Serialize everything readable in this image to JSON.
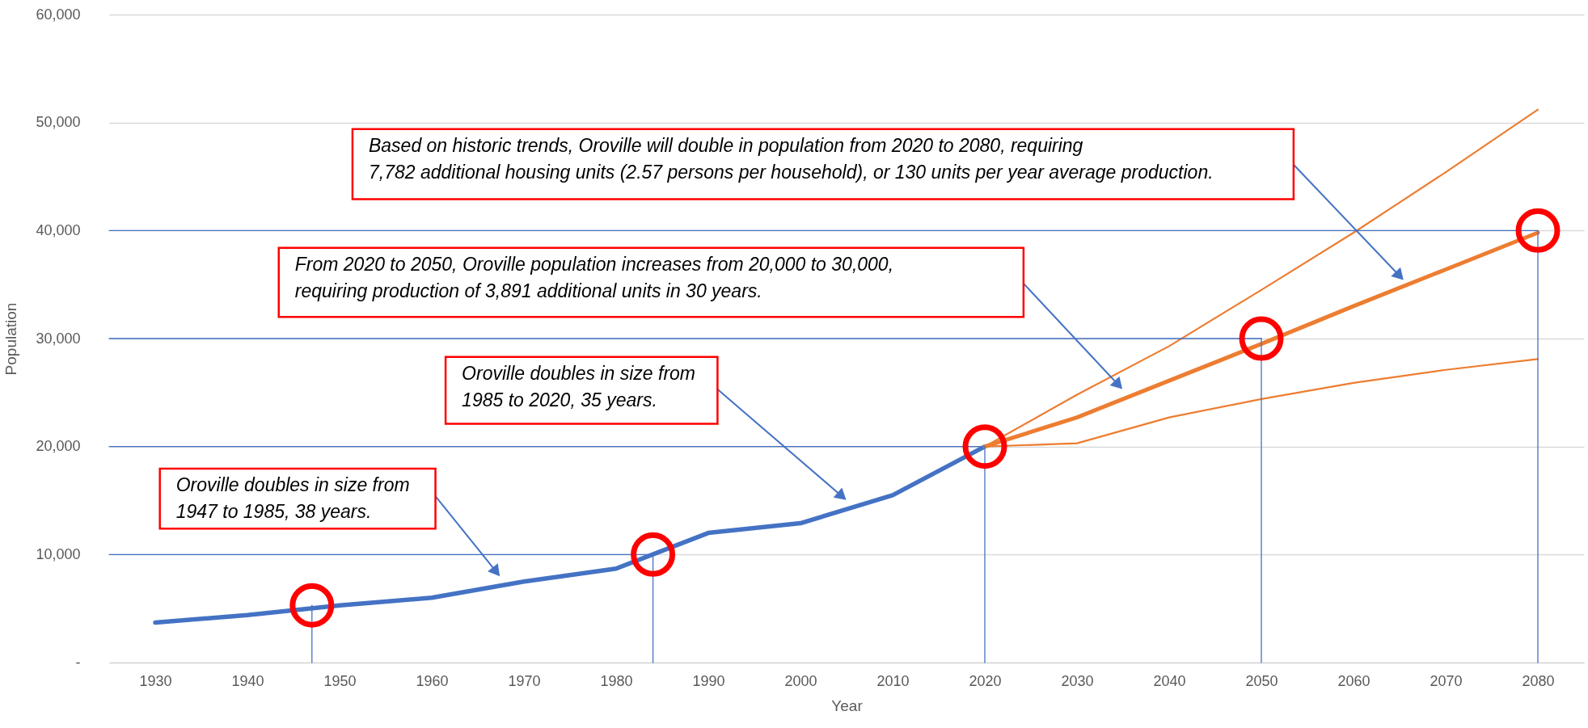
{
  "chart_data": {
    "type": "line",
    "xlabel": "Year",
    "ylabel": "Population",
    "xlim": [
      1925,
      2085
    ],
    "xticks": [
      {
        "value": 1930,
        "label": "1930"
      },
      {
        "value": 1940,
        "label": "1940"
      },
      {
        "value": 1950,
        "label": "1950"
      },
      {
        "value": 1960,
        "label": "1960"
      },
      {
        "value": 1970,
        "label": "1970"
      },
      {
        "value": 1980,
        "label": "1980"
      },
      {
        "value": 1990,
        "label": "1990"
      },
      {
        "value": 2000,
        "label": "2000"
      },
      {
        "value": 2010,
        "label": "2010"
      },
      {
        "value": 2020,
        "label": "2020"
      },
      {
        "value": 2030,
        "label": "2030"
      },
      {
        "value": 2040,
        "label": "2040"
      },
      {
        "value": 2050,
        "label": "2050"
      },
      {
        "value": 2060,
        "label": "2060"
      },
      {
        "value": 2070,
        "label": "2070"
      },
      {
        "value": 2080,
        "label": "2080"
      }
    ],
    "ylim": [
      0,
      60000
    ],
    "yticks": [
      {
        "value": 0,
        "label": "-"
      },
      {
        "value": 10000,
        "label": "10,000"
      },
      {
        "value": 20000,
        "label": "20,000"
      },
      {
        "value": 30000,
        "label": "30,000"
      },
      {
        "value": 40000,
        "label": "40,000"
      },
      {
        "value": 50000,
        "label": "50,000"
      },
      {
        "value": 60000,
        "label": "60,000"
      }
    ],
    "grid": "y",
    "line_style": "solid",
    "series": [
      {
        "color": "#4472c4",
        "x": [
          1930,
          1940,
          1950,
          1960,
          1970,
          1980,
          1990,
          2000,
          2010,
          2020
        ],
        "values": [
          3700,
          4400,
          5300,
          6000,
          7500,
          8700,
          12000,
          12900,
          15500,
          20000
        ]
      },
      {
        "color": "#ed7d31",
        "x": [
          2020,
          2030,
          2040,
          2050,
          2060,
          2070,
          2080
        ],
        "values": [
          20000,
          20300,
          22700,
          24400,
          25900,
          27100,
          28100
        ]
      },
      {
        "color": "#ed7d31",
        "x": [
          2020,
          2030,
          2040,
          2050,
          2060,
          2070,
          2080
        ],
        "values": [
          20000,
          22700,
          26100,
          29500,
          33000,
          36400,
          39800
        ]
      },
      {
        "color": "#ed7d31",
        "x": [
          2020,
          2030,
          2040,
          2050,
          2060,
          2070,
          2080
        ],
        "values": [
          20000,
          24800,
          29300,
          34500,
          39800,
          45400,
          51200
        ]
      },
      {
        "type": "scatter",
        "marker": "circle",
        "color": "#ff0000",
        "x": [
          1947,
          1984,
          2020,
          2050,
          2080
        ],
        "values": [
          5300,
          10000,
          20000,
          30000,
          40000
        ]
      },
      {
        "color": "#4472c4",
        "x": [
          1925,
          1984
        ],
        "values": [
          10000,
          10000
        ]
      },
      {
        "color": "#4472c4",
        "x": [
          1925,
          2020
        ],
        "values": [
          20000,
          20000
        ]
      },
      {
        "color": "#4472c4",
        "x": [
          1925,
          2050
        ],
        "values": [
          30000,
          30000
        ]
      },
      {
        "color": "#4472c4",
        "x": [
          1925,
          2080
        ],
        "values": [
          40000,
          40000
        ]
      },
      {
        "color": "#4472c4",
        "x": [
          1947,
          1947
        ],
        "values": [
          0,
          5300
        ]
      },
      {
        "color": "#4472c4",
        "x": [
          1984,
          1984
        ],
        "values": [
          0,
          10000
        ]
      },
      {
        "color": "#4472c4",
        "x": [
          2020,
          2020
        ],
        "values": [
          0,
          20000
        ]
      },
      {
        "color": "#4472c4",
        "x": [
          2050,
          2050
        ],
        "values": [
          0,
          30000
        ]
      },
      {
        "color": "#4472c4",
        "x": [
          2080,
          2080
        ],
        "values": [
          0,
          40000
        ]
      }
    ],
    "annotations": [
      "Oroville doubles in size from\n1947 to 1985, 38 years.",
      "Oroville doubles in size from\n1985 to 2020, 35 years.",
      "From 2020 to 2050, Oroville population increases from 20,000 to 30,000,\nrequiring production of 3,891 additional units in 30 years.",
      "Based on historic trends, Oroville will double in population from 2020 to 2080, requiring\n7,782 additional housing units (2.57 persons per household), or 130 units per year average production."
    ]
  }
}
